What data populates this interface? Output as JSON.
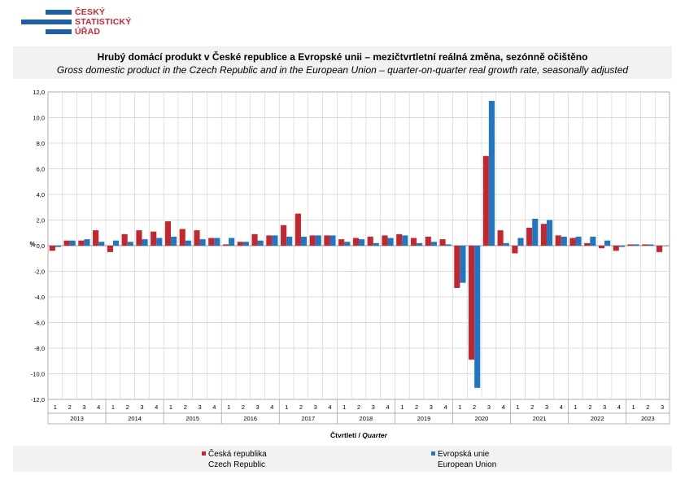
{
  "logo": {
    "lines": [
      "ČESKÝ",
      "STATISTICKÝ",
      "ÚŘAD"
    ]
  },
  "title": {
    "cz": "Hrubý domácí produkt v České republice a Evropské unii – mezičtvrtletní reálná změna, sezónně očištěno",
    "en": "Gross domestic product in the Czech Republic and in the European Union – quarter-on-quarter real growth rate, seasonally adjusted"
  },
  "colors": {
    "cz": "#c5262d",
    "eu": "#1f77c4",
    "grid": "#d0d0d0"
  },
  "chart_data": {
    "type": "bar",
    "ylabel": "%",
    "xlabel_cz": "Čtvrtletí /",
    "xlabel_en": "Quarter",
    "ylim": [
      -12,
      12
    ],
    "yticks": [
      "12,0",
      "10,0",
      "8,0",
      "6,0",
      "4,0",
      "2,0",
      "0,0",
      "-2,0",
      "-4,0",
      "-6,0",
      "-8,0",
      "-10,0",
      "-12,0"
    ],
    "grid": true,
    "legend_position": "bottom",
    "years": [
      "2013",
      "2014",
      "2015",
      "2016",
      "2017",
      "2018",
      "2019",
      "2020",
      "2021",
      "2022",
      "2023"
    ],
    "categories": [
      "1",
      "2",
      "3",
      "4",
      "1",
      "2",
      "3",
      "4",
      "1",
      "2",
      "3",
      "4",
      "1",
      "2",
      "3",
      "4",
      "1",
      "2",
      "3",
      "4",
      "1",
      "2",
      "3",
      "4",
      "1",
      "2",
      "3",
      "4",
      "1",
      "2",
      "3",
      "4",
      "1",
      "2",
      "3",
      "4",
      "1",
      "2",
      "3",
      "4",
      "1",
      "2",
      "3"
    ],
    "series": [
      {
        "name": "Česká republika",
        "name_en": "Czech Republic",
        "values": [
          -0.4,
          0.4,
          0.4,
          1.2,
          -0.5,
          0.9,
          1.2,
          1.1,
          1.9,
          1.3,
          1.2,
          0.6,
          0.1,
          0.3,
          0.9,
          0.8,
          1.6,
          2.5,
          0.8,
          0.8,
          0.5,
          0.6,
          0.7,
          0.8,
          0.9,
          0.6,
          0.7,
          0.5,
          -3.3,
          -8.9,
          7.0,
          1.2,
          -0.6,
          1.4,
          1.7,
          0.8,
          0.6,
          0.2,
          -0.2,
          -0.4,
          0.1,
          0.1,
          -0.5
        ]
      },
      {
        "name": "Evropská unie",
        "name_en": "European Union",
        "values": [
          -0.1,
          0.4,
          0.5,
          0.3,
          0.4,
          0.3,
          0.5,
          0.6,
          0.7,
          0.4,
          0.5,
          0.6,
          0.6,
          0.3,
          0.4,
          0.8,
          0.7,
          0.7,
          0.8,
          0.8,
          0.3,
          0.5,
          0.2,
          0.6,
          0.8,
          0.2,
          0.3,
          0.1,
          -2.9,
          -11.1,
          11.3,
          0.2,
          0.6,
          2.1,
          2.0,
          0.7,
          0.7,
          0.7,
          0.4,
          -0.1,
          0.1,
          0.1,
          0.0
        ]
      }
    ]
  }
}
